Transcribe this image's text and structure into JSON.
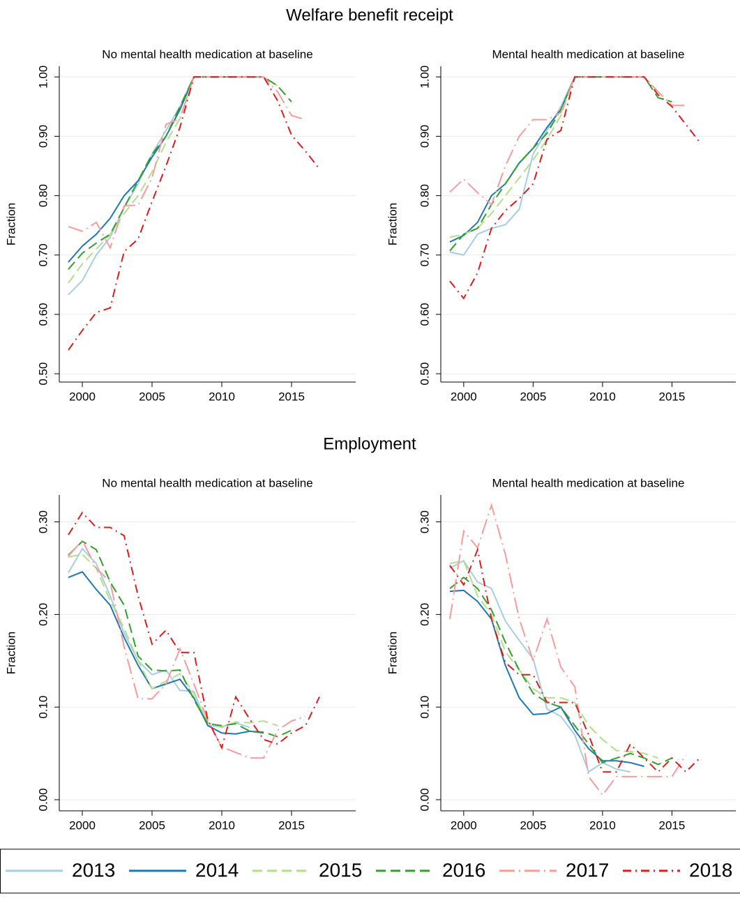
{
  "chart_data": [
    {
      "type": "line",
      "section_title": "Welfare benefit receipt",
      "title": "No mental health medication at baseline",
      "ylabel": "Fraction",
      "x": [
        1999,
        2000,
        2001,
        2002,
        2003,
        2004,
        2005,
        2006,
        2007,
        2008,
        2009,
        2010,
        2011,
        2012,
        2013,
        2014,
        2015,
        2016,
        2017
      ],
      "xlim": [
        1998.35,
        2019.6
      ],
      "xticks": [
        2000,
        2005,
        2010,
        2015
      ],
      "ylim": [
        0.486,
        1.018
      ],
      "yticks": [
        {
          "value": 0.5,
          "label": "0.50"
        },
        {
          "value": 0.6,
          "label": "0.60"
        },
        {
          "value": 0.7,
          "label": "0.70"
        },
        {
          "value": 0.8,
          "label": "0.80"
        },
        {
          "value": 0.9,
          "label": "0.90"
        },
        {
          "value": 1.0,
          "label": "1.00"
        }
      ],
      "grid": true,
      "legend": "bottom",
      "series": [
        {
          "name": "2013",
          "color": "#a6cee3",
          "linestyle": "solid",
          "values": [
            0.633,
            0.657,
            0.7,
            0.73,
            0.78,
            0.82,
            0.87,
            0.91,
            0.95,
            1,
            1,
            1,
            1,
            1,
            null,
            null,
            null,
            null,
            null
          ]
        },
        {
          "name": "2014",
          "color": "#1f78b4",
          "linestyle": "solid",
          "values": [
            0.688,
            0.715,
            0.735,
            0.762,
            0.8,
            0.825,
            0.865,
            0.9,
            0.945,
            1,
            1,
            1,
            1,
            1,
            1,
            null,
            null,
            null,
            null
          ]
        },
        {
          "name": "2015",
          "color": "#b2df8a",
          "linestyle": "dash",
          "values": [
            0.653,
            0.685,
            0.71,
            0.735,
            0.77,
            0.8,
            0.84,
            0.89,
            0.93,
            1,
            1,
            1,
            1,
            1,
            1,
            0.985,
            null,
            null,
            null
          ]
        },
        {
          "name": "2016",
          "color": "#33a02c",
          "linestyle": "dash",
          "values": [
            0.676,
            0.703,
            0.72,
            0.735,
            0.78,
            0.825,
            0.87,
            0.9,
            0.95,
            1,
            1,
            1,
            1,
            1,
            1,
            0.985,
            0.958,
            null,
            null
          ]
        },
        {
          "name": "2017",
          "color": "#fb9a99",
          "linestyle": "longdash_dot",
          "values": [
            0.748,
            0.74,
            0.755,
            0.712,
            0.783,
            0.784,
            0.83,
            0.92,
            0.93,
            1,
            1,
            1,
            1,
            1,
            1,
            0.975,
            0.935,
            0.928,
            null
          ]
        },
        {
          "name": "2018",
          "color": "#e31a1c",
          "linestyle": "dash_dot",
          "values": [
            0.54,
            0.573,
            0.603,
            0.611,
            0.706,
            0.727,
            0.79,
            0.85,
            0.915,
            1,
            1,
            1,
            1,
            1,
            1,
            0.96,
            0.902,
            0.875,
            0.845
          ]
        }
      ]
    },
    {
      "type": "line",
      "title": "Mental health medication at baseline",
      "ylabel": "Fraction",
      "x": [
        1999,
        2000,
        2001,
        2002,
        2003,
        2004,
        2005,
        2006,
        2007,
        2008,
        2009,
        2010,
        2011,
        2012,
        2013,
        2014,
        2015,
        2016,
        2017
      ],
      "xlim": [
        1998.35,
        2019.6
      ],
      "xticks": [
        2000,
        2005,
        2010,
        2015
      ],
      "ylim": [
        0.486,
        1.018
      ],
      "yticks": [
        {
          "value": 0.5,
          "label": "0.50"
        },
        {
          "value": 0.6,
          "label": "0.60"
        },
        {
          "value": 0.7,
          "label": "0.70"
        },
        {
          "value": 0.8,
          "label": "0.80"
        },
        {
          "value": 0.9,
          "label": "0.90"
        },
        {
          "value": 1.0,
          "label": "1.00"
        }
      ],
      "grid": true,
      "series": [
        {
          "name": "2013",
          "color": "#a6cee3",
          "linestyle": "solid",
          "values": [
            0.705,
            0.7,
            0.735,
            0.745,
            0.751,
            0.777,
            0.87,
            0.91,
            0.95,
            1,
            1,
            1,
            1,
            1,
            null,
            null,
            null,
            null,
            null
          ]
        },
        {
          "name": "2014",
          "color": "#1f78b4",
          "linestyle": "solid",
          "values": [
            0.722,
            0.733,
            0.755,
            0.8,
            0.82,
            0.855,
            0.88,
            0.915,
            0.945,
            1,
            1,
            1,
            1,
            1,
            1,
            null,
            null,
            null,
            null
          ]
        },
        {
          "name": "2015",
          "color": "#b2df8a",
          "linestyle": "dash",
          "values": [
            0.73,
            0.735,
            0.745,
            0.77,
            0.8,
            0.83,
            0.86,
            0.895,
            0.935,
            1,
            1,
            1,
            1,
            1,
            1,
            0.975,
            null,
            null,
            null
          ]
        },
        {
          "name": "2016",
          "color": "#33a02c",
          "linestyle": "dash",
          "values": [
            0.707,
            0.735,
            0.745,
            0.785,
            0.82,
            0.855,
            0.88,
            0.905,
            0.945,
            1,
            1,
            1,
            1,
            1,
            1,
            0.965,
            0.958,
            null,
            null
          ]
        },
        {
          "name": "2017",
          "color": "#fb9a99",
          "linestyle": "longdash_dot",
          "values": [
            0.806,
            0.828,
            0.805,
            0.785,
            0.85,
            0.9,
            0.928,
            0.928,
            0.94,
            1,
            1,
            1,
            1,
            1,
            1,
            0.975,
            0.952,
            0.952,
            null
          ]
        },
        {
          "name": "2018",
          "color": "#e31a1c",
          "linestyle": "dash_dot",
          "values": [
            0.656,
            0.627,
            0.67,
            0.745,
            0.775,
            0.795,
            0.82,
            0.895,
            0.91,
            1,
            1,
            1,
            1,
            1,
            1,
            0.97,
            0.95,
            0.92,
            0.89
          ]
        }
      ]
    },
    {
      "type": "line",
      "section_title": "Employment",
      "title": "No mental health medication at baseline",
      "ylabel": "Fraction",
      "x": [
        1999,
        2000,
        2001,
        2002,
        2003,
        2004,
        2005,
        2006,
        2007,
        2008,
        2009,
        2010,
        2011,
        2012,
        2013,
        2014,
        2015,
        2016,
        2017
      ],
      "xlim": [
        1998.35,
        2019.6
      ],
      "xticks": [
        2000,
        2005,
        2010,
        2015
      ],
      "ylim": [
        -0.012,
        0.329
      ],
      "yticks": [
        {
          "value": 0,
          "label": "0.00"
        },
        {
          "value": 0.1,
          "label": "0.10"
        },
        {
          "value": 0.2,
          "label": "0.20"
        },
        {
          "value": 0.3,
          "label": "0.30"
        }
      ],
      "grid": true,
      "series": [
        {
          "name": "2013",
          "color": "#a6cee3",
          "linestyle": "solid",
          "values": [
            0.245,
            0.271,
            0.255,
            0.22,
            0.18,
            0.15,
            0.135,
            0.14,
            0.118,
            0.117,
            0.08,
            0.079,
            0.083,
            0.078,
            null,
            null,
            null,
            null,
            null
          ]
        },
        {
          "name": "2014",
          "color": "#1f78b4",
          "linestyle": "solid",
          "values": [
            0.24,
            0.246,
            0.227,
            0.21,
            0.175,
            0.145,
            0.12,
            0.125,
            0.13,
            0.11,
            0.08,
            0.072,
            0.071,
            0.074,
            0.072,
            null,
            null,
            null,
            null
          ]
        },
        {
          "name": "2015",
          "color": "#b2df8a",
          "linestyle": "dash",
          "values": [
            0.262,
            0.265,
            0.25,
            0.215,
            0.185,
            0.15,
            0.12,
            0.128,
            0.136,
            0.115,
            0.083,
            0.078,
            0.084,
            0.083,
            0.085,
            0.08,
            null,
            null,
            null
          ]
        },
        {
          "name": "2016",
          "color": "#33a02c",
          "linestyle": "dash",
          "values": [
            0.264,
            0.279,
            0.27,
            0.235,
            0.21,
            0.155,
            0.14,
            0.139,
            0.14,
            0.108,
            0.082,
            0.08,
            0.082,
            0.074,
            0.073,
            0.068,
            0.075,
            null,
            null
          ]
        },
        {
          "name": "2017",
          "color": "#fb9a99",
          "linestyle": "longdash_dot",
          "values": [
            0.263,
            0.28,
            0.25,
            0.235,
            0.165,
            0.109,
            0.109,
            0.125,
            0.163,
            0.125,
            0.085,
            0.057,
            0.051,
            0.045,
            0.045,
            0.075,
            0.085,
            0.09,
            null
          ]
        },
        {
          "name": "2018",
          "color": "#e31a1c",
          "linestyle": "dash_dot",
          "values": [
            0.286,
            0.31,
            0.294,
            0.294,
            0.285,
            0.22,
            0.168,
            0.183,
            0.159,
            0.159,
            0.086,
            0.056,
            0.111,
            0.087,
            0.065,
            0.06,
            0.072,
            0.08,
            0.111
          ]
        }
      ]
    },
    {
      "type": "line",
      "title": "Mental health medication at baseline",
      "ylabel": "Fraction",
      "x": [
        1999,
        2000,
        2001,
        2002,
        2003,
        2004,
        2005,
        2006,
        2007,
        2008,
        2009,
        2010,
        2011,
        2012,
        2013,
        2014,
        2015,
        2016,
        2017
      ],
      "xlim": [
        1998.35,
        2019.6
      ],
      "xticks": [
        2000,
        2005,
        2010,
        2015
      ],
      "ylim": [
        -0.012,
        0.329
      ],
      "yticks": [
        {
          "value": 0,
          "label": "0.00"
        },
        {
          "value": 0.1,
          "label": "0.10"
        },
        {
          "value": 0.2,
          "label": "0.20"
        },
        {
          "value": 0.3,
          "label": "0.30"
        }
      ],
      "grid": true,
      "series": [
        {
          "name": "2013",
          "color": "#a6cee3",
          "linestyle": "solid",
          "values": [
            0.25,
            0.258,
            0.235,
            0.228,
            0.193,
            0.172,
            0.152,
            0.098,
            0.09,
            0.07,
            0.03,
            0.04,
            0.033,
            0.03,
            null,
            null,
            null,
            null,
            null
          ]
        },
        {
          "name": "2014",
          "color": "#1f78b4",
          "linestyle": "solid",
          "values": [
            0.225,
            0.226,
            0.214,
            0.195,
            0.145,
            0.11,
            0.092,
            0.093,
            0.1,
            0.075,
            0.055,
            0.042,
            0.042,
            0.04,
            0.036,
            null,
            null,
            null,
            null
          ]
        },
        {
          "name": "2015",
          "color": "#b2df8a",
          "linestyle": "dash",
          "values": [
            0.255,
            0.258,
            0.22,
            0.2,
            0.16,
            0.14,
            0.12,
            0.11,
            0.11,
            0.105,
            0.08,
            0.065,
            0.053,
            0.052,
            0.05,
            0.045,
            null,
            null,
            null
          ]
        },
        {
          "name": "2016",
          "color": "#33a02c",
          "linestyle": "dash",
          "values": [
            0.228,
            0.24,
            0.228,
            0.205,
            0.17,
            0.14,
            0.115,
            0.105,
            0.1,
            0.08,
            0.06,
            0.04,
            0.045,
            0.05,
            0.045,
            0.038,
            0.045,
            null,
            null
          ]
        },
        {
          "name": "2017",
          "color": "#fb9a99",
          "linestyle": "longdash_dot",
          "values": [
            0.195,
            0.29,
            0.272,
            0.318,
            0.265,
            0.195,
            0.15,
            0.195,
            0.143,
            0.122,
            0.025,
            0.005,
            0.025,
            0.025,
            0.025,
            0.025,
            0.025,
            0.048,
            null
          ]
        },
        {
          "name": "2018",
          "color": "#e31a1c",
          "linestyle": "dash_dot",
          "values": [
            0.253,
            0.232,
            0.27,
            0.195,
            0.148,
            0.135,
            0.135,
            0.105,
            0.105,
            0.105,
            0.07,
            0.03,
            0.03,
            0.06,
            0.045,
            0.03,
            0.045,
            0.03,
            0.045
          ]
        }
      ]
    }
  ]
}
